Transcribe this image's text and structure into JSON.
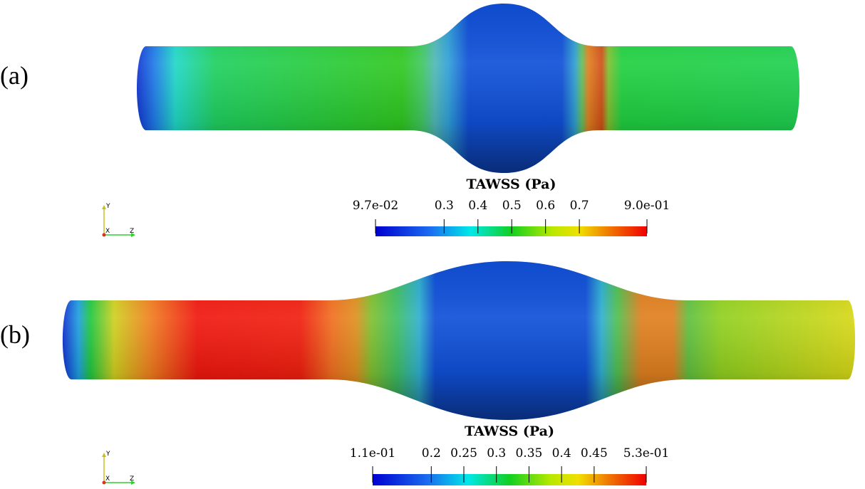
{
  "panels": [
    {
      "label": "(a)",
      "axes": [
        "Y",
        "X",
        "Z"
      ],
      "colorbar": {
        "title": "TAWSS (Pa)",
        "range": [
          0.097,
          0.9
        ],
        "ticks": [
          {
            "value": 0.097,
            "label": "9.7e-02"
          },
          0.3,
          0.4,
          0.5,
          0.6,
          0.7,
          {
            "value": 0.9,
            "label": "9.0e-01"
          }
        ]
      }
    },
    {
      "label": "(b)",
      "axes": [
        "Y",
        "X",
        "Z"
      ],
      "colorbar": {
        "title": "TAWSS (Pa)",
        "range": [
          0.11,
          0.53
        ],
        "ticks": [
          {
            "value": 0.11,
            "label": "1.1e-01"
          },
          0.2,
          0.25,
          0.3,
          0.35,
          0.4,
          0.45,
          {
            "value": 0.53,
            "label": "5.3e-01"
          }
        ]
      }
    }
  ]
}
